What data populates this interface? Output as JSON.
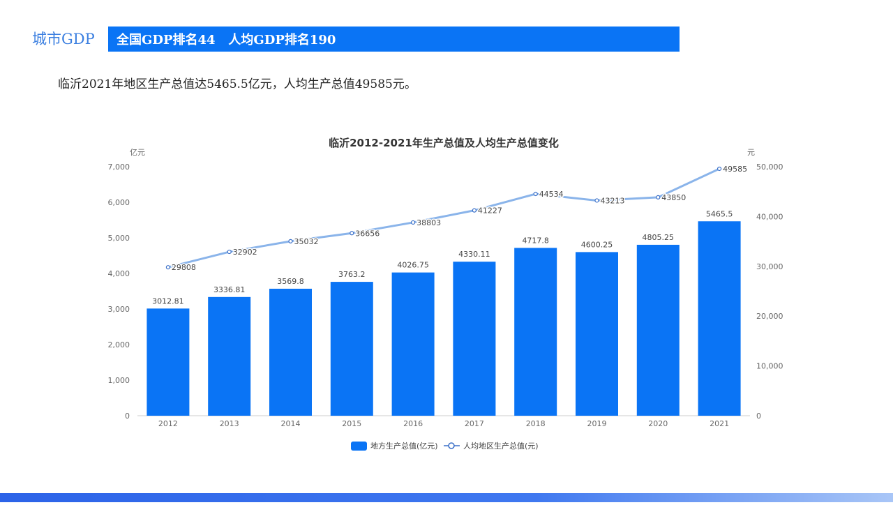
{
  "header": {
    "brand": "城市GDP",
    "rank_text": "全国GDP排名44   人均GDP排名190"
  },
  "summary": "临沂2021年地区生产总值达5465.5亿元，人均生产总值49585元。",
  "colors": {
    "bar": "#0a74f5",
    "line": "#8ab4ea",
    "banner": "#0a74f5"
  },
  "chart_data": {
    "type": "bar",
    "title": "临沂2012-2021年生产总值及人均生产总值变化",
    "categories": [
      "2012",
      "2013",
      "2014",
      "2015",
      "2016",
      "2017",
      "2018",
      "2019",
      "2020",
      "2021"
    ],
    "y_left": {
      "unit_label": "亿元",
      "ylim": [
        0,
        7000
      ],
      "ticks": [
        "0",
        "1,000",
        "2,000",
        "3,000",
        "4,000",
        "5,000",
        "6,000",
        "7,000"
      ]
    },
    "y_right": {
      "unit_label": "元",
      "ylim": [
        0,
        50000
      ],
      "ticks": [
        "0",
        "10,000",
        "20,000",
        "30,000",
        "40,000",
        "50,000"
      ]
    },
    "series": [
      {
        "name": "地方生产总值(亿元)",
        "type": "bar",
        "axis": "left",
        "values": [
          3012.81,
          3336.81,
          3569.8,
          3763.2,
          4026.75,
          4330.11,
          4717.8,
          4600.25,
          4805.25,
          5465.5
        ],
        "labels": [
          "3012.81",
          "3336.81",
          "3569.8",
          "3763.2",
          "4026.75",
          "4330.11",
          "4717.8",
          "4600.25",
          "4805.25",
          "5465.5"
        ]
      },
      {
        "name": "人均地区生产总值(元)",
        "type": "line",
        "axis": "right",
        "values": [
          29808,
          32902,
          35032,
          36656,
          38803,
          41227,
          44534,
          43213,
          43850,
          49585
        ],
        "labels": [
          "29808",
          "32902",
          "35032",
          "36656",
          "38803",
          "41227",
          "44534",
          "43213",
          "43850",
          "49585"
        ]
      }
    ],
    "legend_position": "bottom",
    "grid": false
  }
}
